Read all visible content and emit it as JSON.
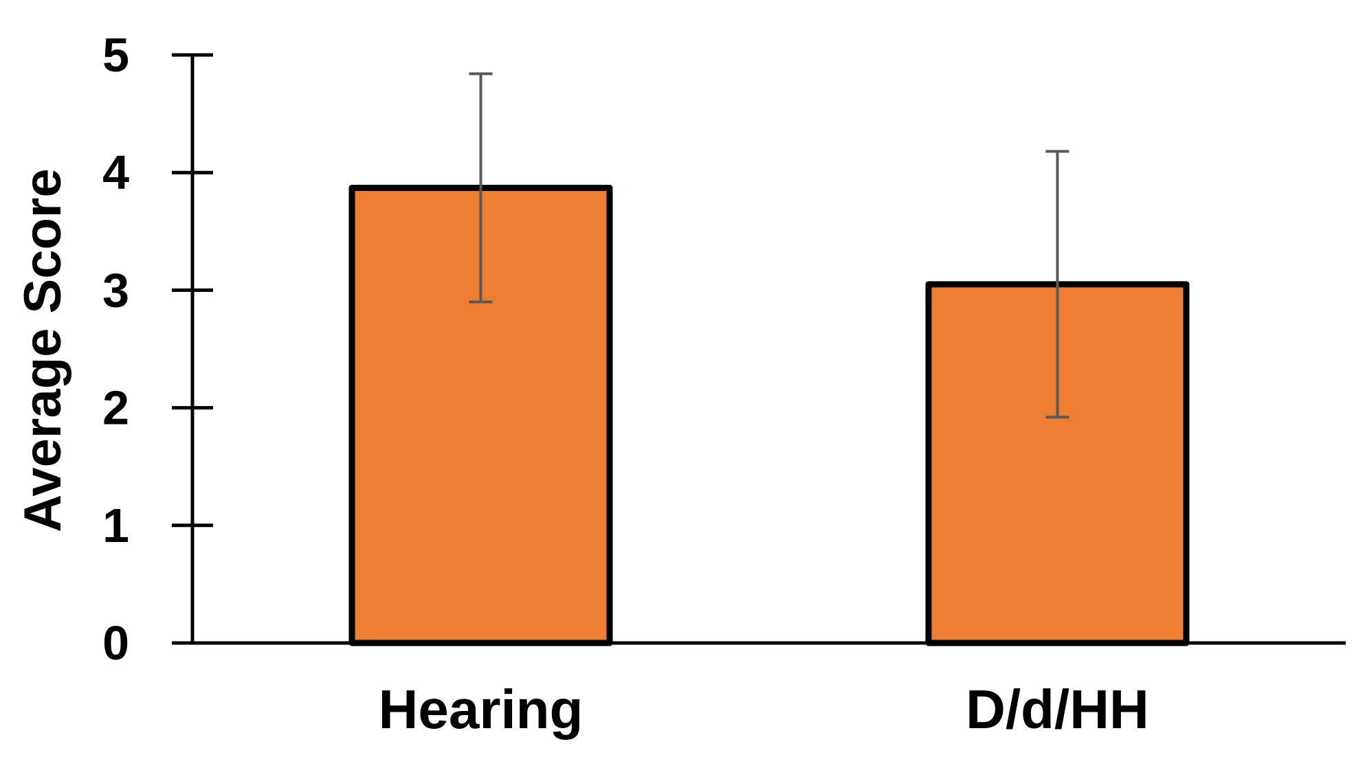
{
  "chart_data": {
    "type": "bar",
    "categories": [
      "Hearing",
      "D/d/HH"
    ],
    "values": [
      3.87,
      3.05
    ],
    "error_bars": [
      {
        "low": 2.9,
        "high": 4.84
      },
      {
        "low": 1.92,
        "high": 4.18
      }
    ],
    "title": "",
    "xlabel": "",
    "ylabel": "Average Score",
    "ylim": [
      0,
      5
    ],
    "yticks": [
      "0",
      "1",
      "2",
      "3",
      "4",
      "5"
    ],
    "grid": false,
    "legend": "none",
    "colors": {
      "bar_fill": "#ED7D31",
      "bar_outline": "#000000",
      "error_bar": "#595959",
      "axis": "#000000"
    }
  }
}
